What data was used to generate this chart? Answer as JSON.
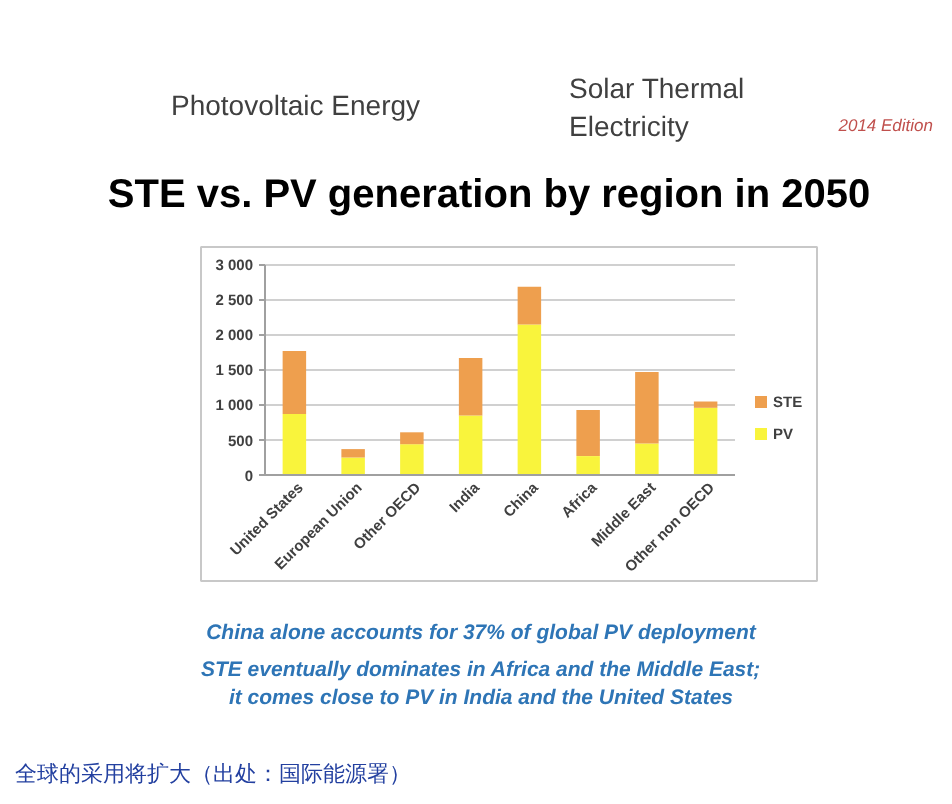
{
  "chart_data": {
    "type": "bar",
    "title": "STE vs. PV generation by region in 2050",
    "categories": [
      "United States",
      "European Union",
      "Other OECD",
      "India",
      "China",
      "Africa",
      "Middle East",
      "Other non OECD"
    ],
    "series": [
      {
        "name": "PV",
        "color": "#f9f43c",
        "values": [
          870,
          250,
          440,
          850,
          2150,
          270,
          450,
          960
        ]
      },
      {
        "name": "STE",
        "color": "#ee9f4e",
        "values": [
          900,
          120,
          170,
          820,
          540,
          660,
          1020,
          90
        ]
      }
    ],
    "stacked": true,
    "ylim": [
      0,
      3000
    ],
    "yticks": [
      0,
      500,
      {
        "value": 1000,
        "label": "1 000"
      },
      {
        "value": 1500,
        "label": "1 500"
      },
      {
        "value": 2000,
        "label": "2 000"
      },
      {
        "value": 2500,
        "label": "2 500"
      },
      {
        "value": 3000,
        "label": "3 000"
      }
    ],
    "grid": "y",
    "legend": "right",
    "annotations": [
      "Photovoltaic Energy",
      "Solar Thermal\nElectricity",
      "2014 Edition",
      "China alone accounts for 37% of global PV deployment",
      "STE eventually dominates in Africa and the Middle East;\nit comes close to PV in India and the United States",
      "全球的采用将扩大（出处：国际能源署）"
    ]
  }
}
